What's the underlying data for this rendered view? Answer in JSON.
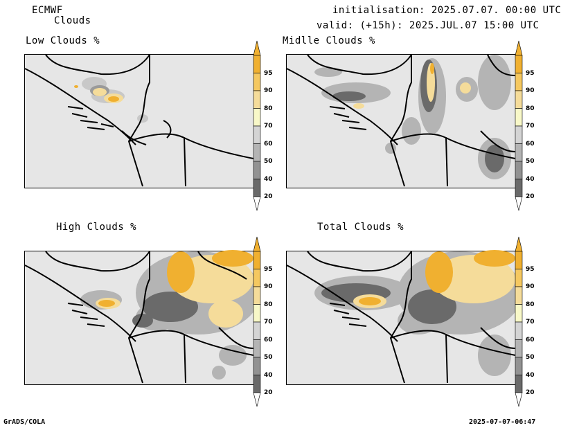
{
  "header": {
    "model": "ECMWF",
    "variable": "Clouds",
    "init": "initialisation: 2025.07.07. 00:00 UTC",
    "valid": "valid: (+15h): 2025.JUL.07 15:00 UTC"
  },
  "panels": [
    {
      "title": "Low Clouds %"
    },
    {
      "title": "Midlle Clouds %"
    },
    {
      "title": "High Clouds %"
    },
    {
      "title": "Total Clouds %"
    }
  ],
  "legend": {
    "labels": [
      "95",
      "90",
      "80",
      "70",
      "60",
      "50",
      "40",
      "20"
    ],
    "colors": [
      "#f0b030",
      "#f5c860",
      "#f5dc9a",
      "#f8f8c8",
      "#d4d4d4",
      "#b4b4b4",
      "#929292",
      "#6a6a6a",
      "#3a3a3a"
    ]
  },
  "footer": {
    "left": "GrADS/COLA",
    "right": "2025-07-07-06:47"
  }
}
